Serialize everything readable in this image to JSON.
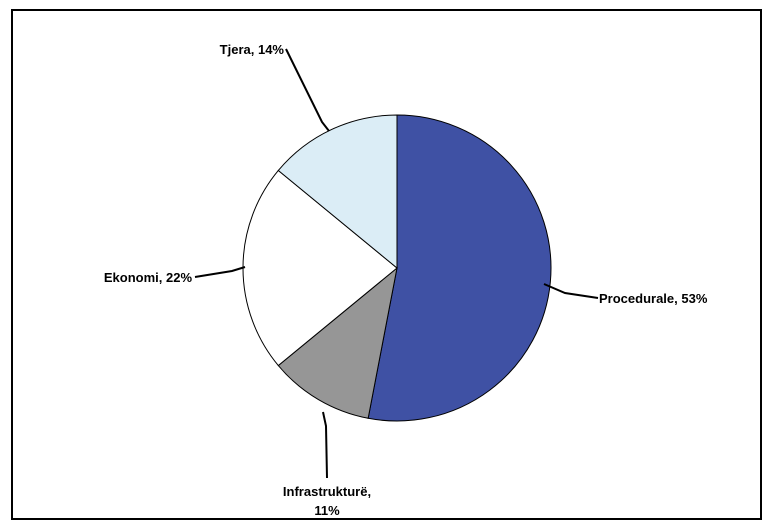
{
  "chart_data": {
    "type": "pie",
    "title": "",
    "slices": [
      {
        "label": "Procedurale, 53%",
        "value": 53,
        "color": "#3f51a4"
      },
      {
        "label": "Infrastrukturë, 11%",
        "value": 11,
        "color": "#969696"
      },
      {
        "label": "Ekonomi, 22%",
        "value": 22,
        "color": "#ffffff"
      },
      {
        "label": "Tjera, 14%",
        "value": 14,
        "color": "#dbedf6"
      }
    ],
    "labels": {
      "procedurale": "Procedurale, 53%",
      "infrastrukture_line1": "Infrastrukturë,",
      "infrastrukture_line2": "11%",
      "ekonomi": "Ekonomi, 22%",
      "tjera": "Tjera, 14%"
    },
    "legend": "none",
    "start_angle": "12 o'clock, clockwise"
  }
}
